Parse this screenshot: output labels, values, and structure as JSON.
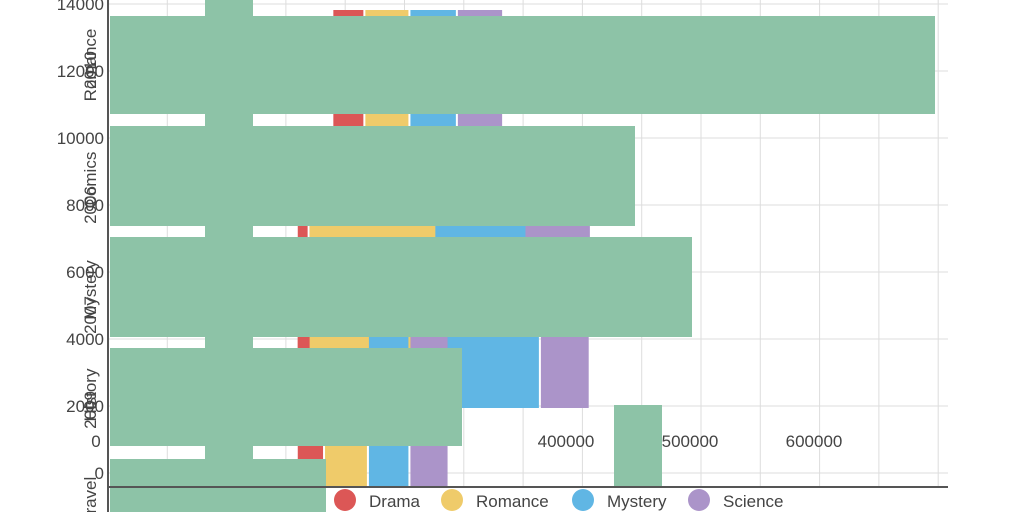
{
  "chart_data": [
    {
      "type": "bar",
      "orientation": "horizontal",
      "stacked": true,
      "categories": [
        "2010",
        "2006",
        "2007",
        "2009"
      ],
      "series": [
        {
          "name": "Drama",
          "values": [
            27000,
            41000,
            10000,
            23000
          ]
        },
        {
          "name": "Romance",
          "values": [
            38000,
            80000,
            106000,
            37000
          ]
        },
        {
          "name": "Mystery",
          "values": [
            40000,
            61000,
            89000,
            35000
          ]
        },
        {
          "name": "Science",
          "values": [
            39000,
            56000,
            42000,
            33000
          ]
        }
      ],
      "xlim": [
        0,
        700000
      ],
      "x_ticks": [
        "0",
        "400000",
        "500000",
        "600000"
      ],
      "grid": true,
      "legend_position": "bottom"
    },
    {
      "type": "bar",
      "orientation": "horizontal",
      "categories": [
        "Romance",
        "Comics",
        "Mystery",
        "History",
        "Travel"
      ],
      "values": [
        13800,
        8400,
        8200,
        6800,
        4200
      ],
      "ylim": [
        0,
        14000
      ],
      "y_ticks": [
        "0",
        "2000",
        "4000",
        "6000",
        "8000",
        "10000",
        "12000",
        "14000"
      ],
      "grid": true
    }
  ],
  "legend": [
    {
      "name": "Drama",
      "color": "#dc5756"
    },
    {
      "name": "Romance",
      "color": "#efcb6a"
    },
    {
      "name": "Mystery",
      "color": "#60b6e4"
    },
    {
      "name": "Science",
      "color": "#ab94c9"
    }
  ],
  "colors": {
    "overlay_green": "#8dc3a7",
    "grid": "#dddddd",
    "axis": "#555555",
    "text": "#444444"
  }
}
